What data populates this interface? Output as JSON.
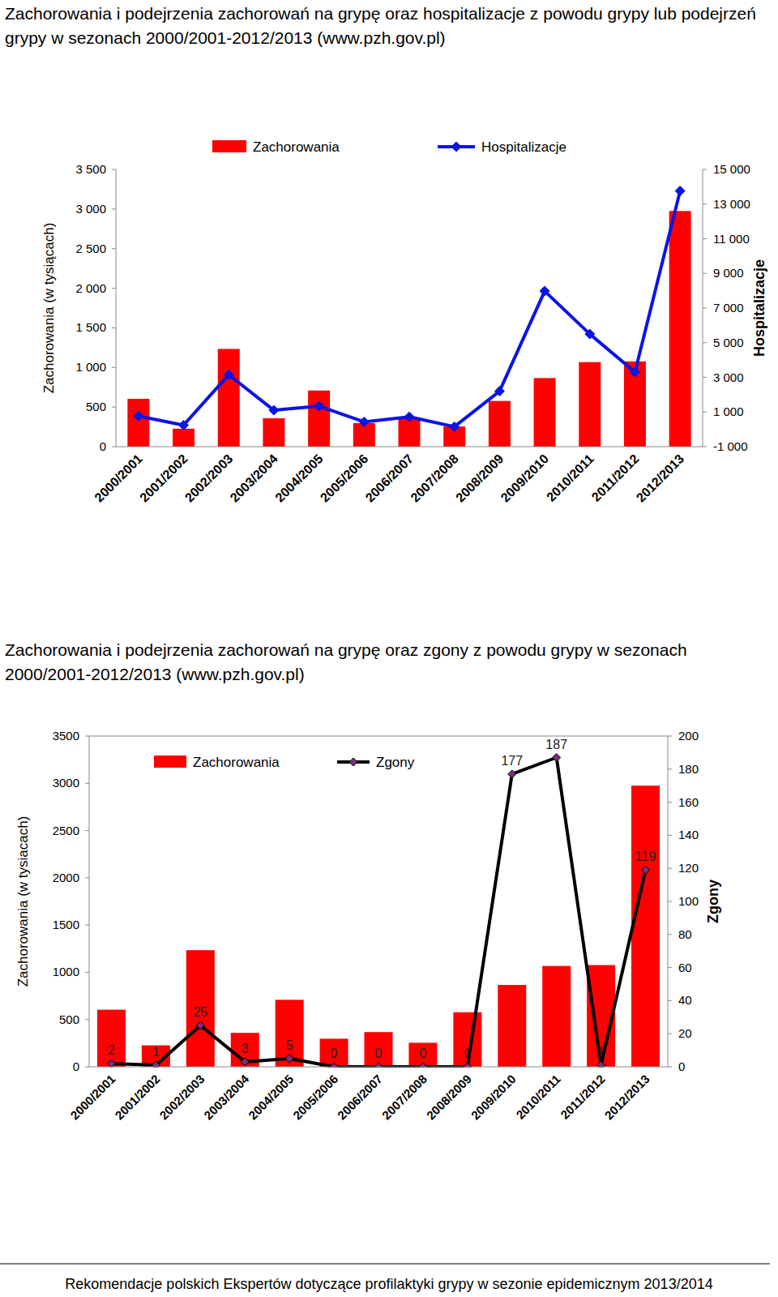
{
  "chart_data": [
    {
      "type": "bar",
      "title": "Zachorowania i podejrzenia zachorowań na grypę oraz hospitalizacje z powodu grypy lub podejrzeń grypy w sezonach 2000/2001-2012/2013 (www.pzh.gov.pl)",
      "categories": [
        "2000/2001",
        "2001/2002",
        "2002/2003",
        "2003/2004",
        "2004/2005",
        "2005/2006",
        "2006/2007",
        "2007/2008",
        "2008/2009",
        "2009/2010",
        "2010/2011",
        "2011/2012",
        "2012/2013"
      ],
      "series": [
        {
          "name": "Zachorowania",
          "type": "bar",
          "color": "#ff0000",
          "values": [
            604,
            227,
            1234,
            359,
            709,
            297,
            367,
            254,
            577,
            866,
            1067,
            1076,
            2975
          ]
        },
        {
          "name": "Hospitalizacje",
          "type": "line",
          "axis": "y2",
          "color": "#0a14e6",
          "marker": "diamond",
          "line_style": "solid",
          "values": [
            770,
            240,
            3150,
            1100,
            1340,
            430,
            720,
            150,
            2200,
            7980,
            5500,
            3300,
            13760
          ]
        }
      ],
      "ylabel": "Zachorowania  (w tysiącach)",
      "y2label": "Hospitalizacje",
      "ylim": [
        0,
        3500
      ],
      "yticks": [
        0,
        500,
        {
          "value": 1000,
          "label": "1 000"
        },
        {
          "value": 1500,
          "label": "1 500"
        },
        {
          "value": 2000,
          "label": "2 000"
        },
        {
          "value": 2500,
          "label": "2 500"
        },
        {
          "value": 3000,
          "label": "3 000"
        },
        {
          "value": 3500,
          "label": "3 500"
        }
      ],
      "y2lim": [
        -1000,
        15000
      ],
      "y2ticks": [
        {
          "value": -1000,
          "label": "-1 000"
        },
        {
          "value": 1000,
          "label": "1 000"
        },
        {
          "value": 3000,
          "label": "3 000"
        },
        {
          "value": 5000,
          "label": "5 000"
        },
        {
          "value": 7000,
          "label": "7 000"
        },
        {
          "value": 9000,
          "label": "9 000"
        },
        {
          "value": 11000,
          "label": "11 000"
        },
        {
          "value": 13000,
          "label": "13 000"
        },
        {
          "value": 15000,
          "label": "15 000"
        }
      ],
      "grid": false,
      "legend": "top"
    },
    {
      "type": "bar",
      "title": "Zachorowania i podejrzenia zachorowań na grypę oraz zgony z powodu grypy w sezonach 2000/2001-2012/2013 (www.pzh.gov.pl)",
      "categories": [
        "2000/2001",
        "2001/2002",
        "2002/2003",
        "2003/2004",
        "2004/2005",
        "2005/2006",
        "2006/2007",
        "2007/2008",
        "2008/2009",
        "2009/2010",
        "2010/2011",
        "2011/2012",
        "2012/2013"
      ],
      "series": [
        {
          "name": "Zachorowania",
          "type": "bar",
          "color": "#ff0000",
          "values": [
            604,
            227,
            1234,
            359,
            709,
            297,
            367,
            254,
            577,
            866,
            1067,
            1076,
            2975
          ]
        },
        {
          "name": "Zgony",
          "type": "line",
          "axis": "y2",
          "color": "#000000",
          "marker": "diamond",
          "line_style": "solid",
          "data_labels": true,
          "values": [
            2,
            1,
            25,
            3,
            5,
            0,
            0,
            0,
            0,
            177,
            187,
            1,
            119
          ]
        }
      ],
      "ylabel": "Zachorowania (w  tysiacach)",
      "y2label": "Zgony",
      "ylim": [
        0,
        3500
      ],
      "yticks": [
        0,
        500,
        1000,
        1500,
        2000,
        2500,
        3000,
        3500
      ],
      "y2lim": [
        0,
        200
      ],
      "y2ticks": [
        0,
        20,
        40,
        60,
        80,
        100,
        120,
        140,
        160,
        180,
        200
      ],
      "grid": false,
      "legend": "top"
    }
  ],
  "footer": "Rekomendacje polskich Ekspertów dotyczące profilaktyki grypy w sezonie epidemicznym 2013/2014"
}
